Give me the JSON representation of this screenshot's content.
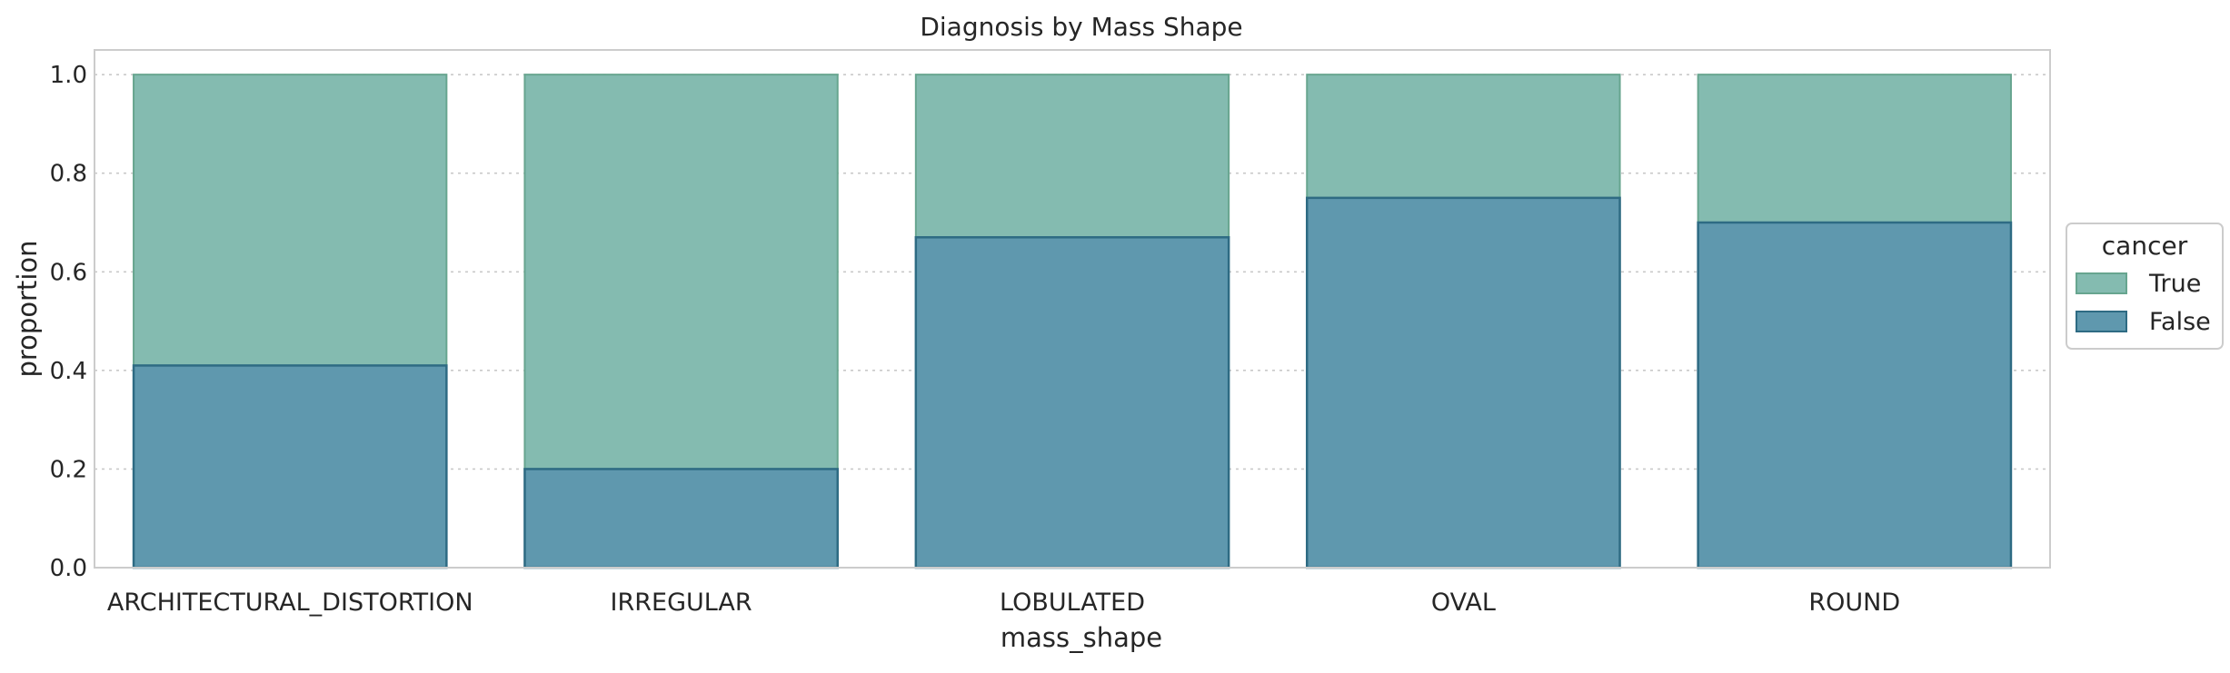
{
  "chart_data": {
    "type": "bar",
    "stacked": true,
    "title": "Diagnosis by Mass Shape",
    "xlabel": "mass_shape",
    "ylabel": "proportion",
    "categories": [
      "ARCHITECTURAL_DISTORTION",
      "IRREGULAR",
      "LOBULATED",
      "OVAL",
      "ROUND"
    ],
    "series": [
      {
        "name": "False",
        "values": [
          0.41,
          0.2,
          0.67,
          0.75,
          0.7
        ],
        "color": "#5f98ae"
      },
      {
        "name": "True",
        "values": [
          0.59,
          0.8,
          0.33,
          0.25,
          0.3
        ],
        "color": "#84bbb0"
      }
    ],
    "ylim": [
      0,
      1.05
    ],
    "yticks": [
      "0.0",
      "0.2",
      "0.4",
      "0.6",
      "0.8",
      "1.0"
    ],
    "grid": true,
    "legend": {
      "title": "cancer",
      "placement": "right",
      "entries": [
        "True",
        "False"
      ]
    }
  }
}
